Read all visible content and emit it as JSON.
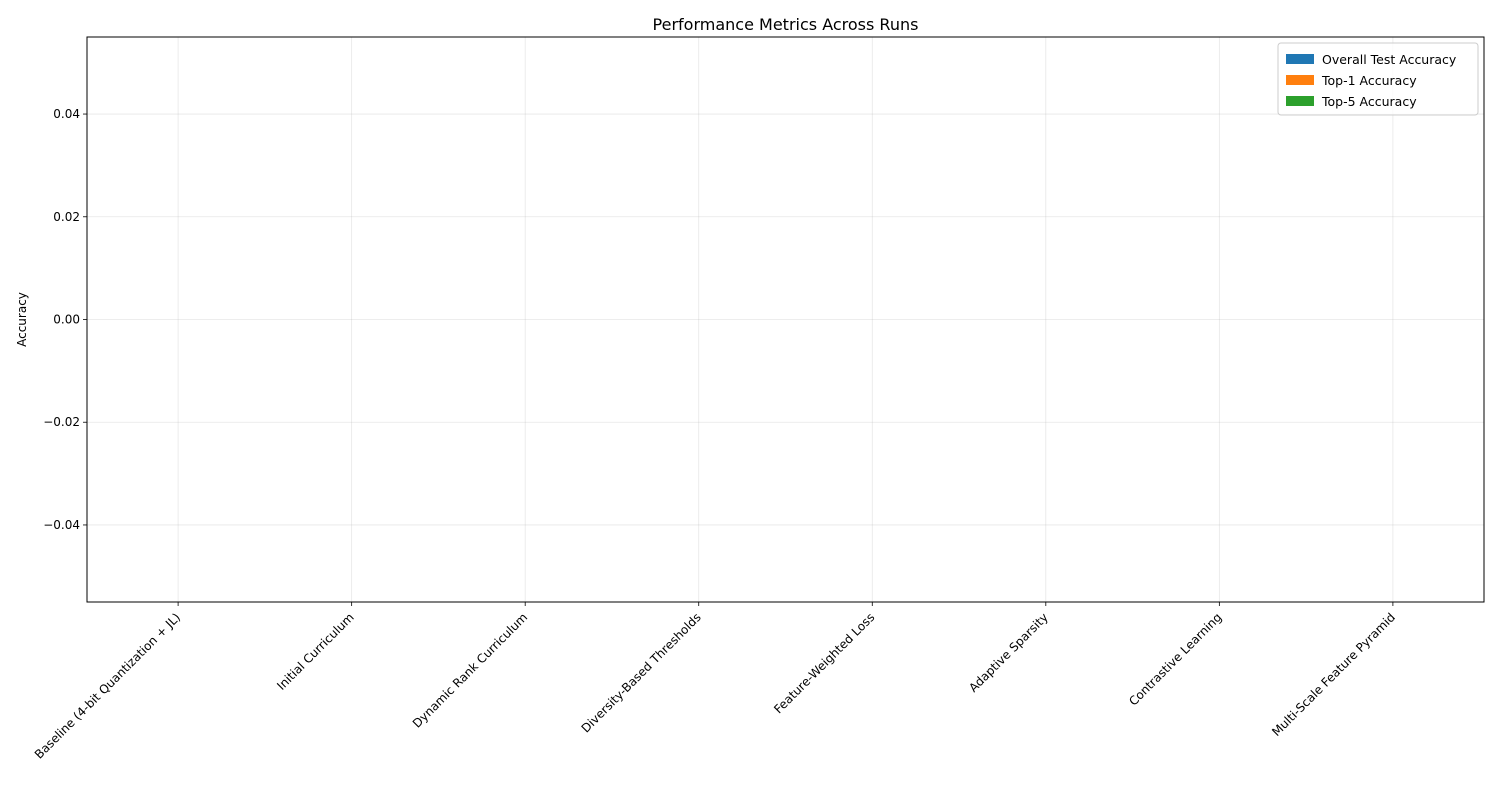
{
  "chart_data": {
    "type": "bar",
    "title": "Performance Metrics Across Runs",
    "xlabel": "",
    "ylabel": "Accuracy",
    "categories": [
      "Baseline (4-bit Quantization + JL)",
      "Initial Curriculum",
      "Dynamic Rank Curriculum",
      "Diversity-Based Thresholds",
      "Feature-Weighted Loss",
      "Adaptive Sparsity",
      "Contrastive Learning",
      "Multi-Scale Feature Pyramid"
    ],
    "series": [
      {
        "name": "Overall Test Accuracy",
        "color": "#1f77b4",
        "values": [
          0,
          0,
          0,
          0,
          0,
          0,
          0,
          0
        ]
      },
      {
        "name": "Top-1 Accuracy",
        "color": "#ff7f0e",
        "values": [
          0,
          0,
          0,
          0,
          0,
          0,
          0,
          0
        ]
      },
      {
        "name": "Top-5 Accuracy",
        "color": "#2ca02c",
        "values": [
          0,
          0,
          0,
          0,
          0,
          0,
          0,
          0
        ]
      }
    ],
    "ylim": [
      -0.055,
      0.055
    ],
    "yticks": [
      -0.04,
      -0.02,
      0.0,
      0.02,
      0.04
    ],
    "ytick_labels": [
      "−0.04",
      "−0.02",
      "0.00",
      "0.02",
      "0.04"
    ],
    "grid": true,
    "legend_position": "top-right"
  }
}
